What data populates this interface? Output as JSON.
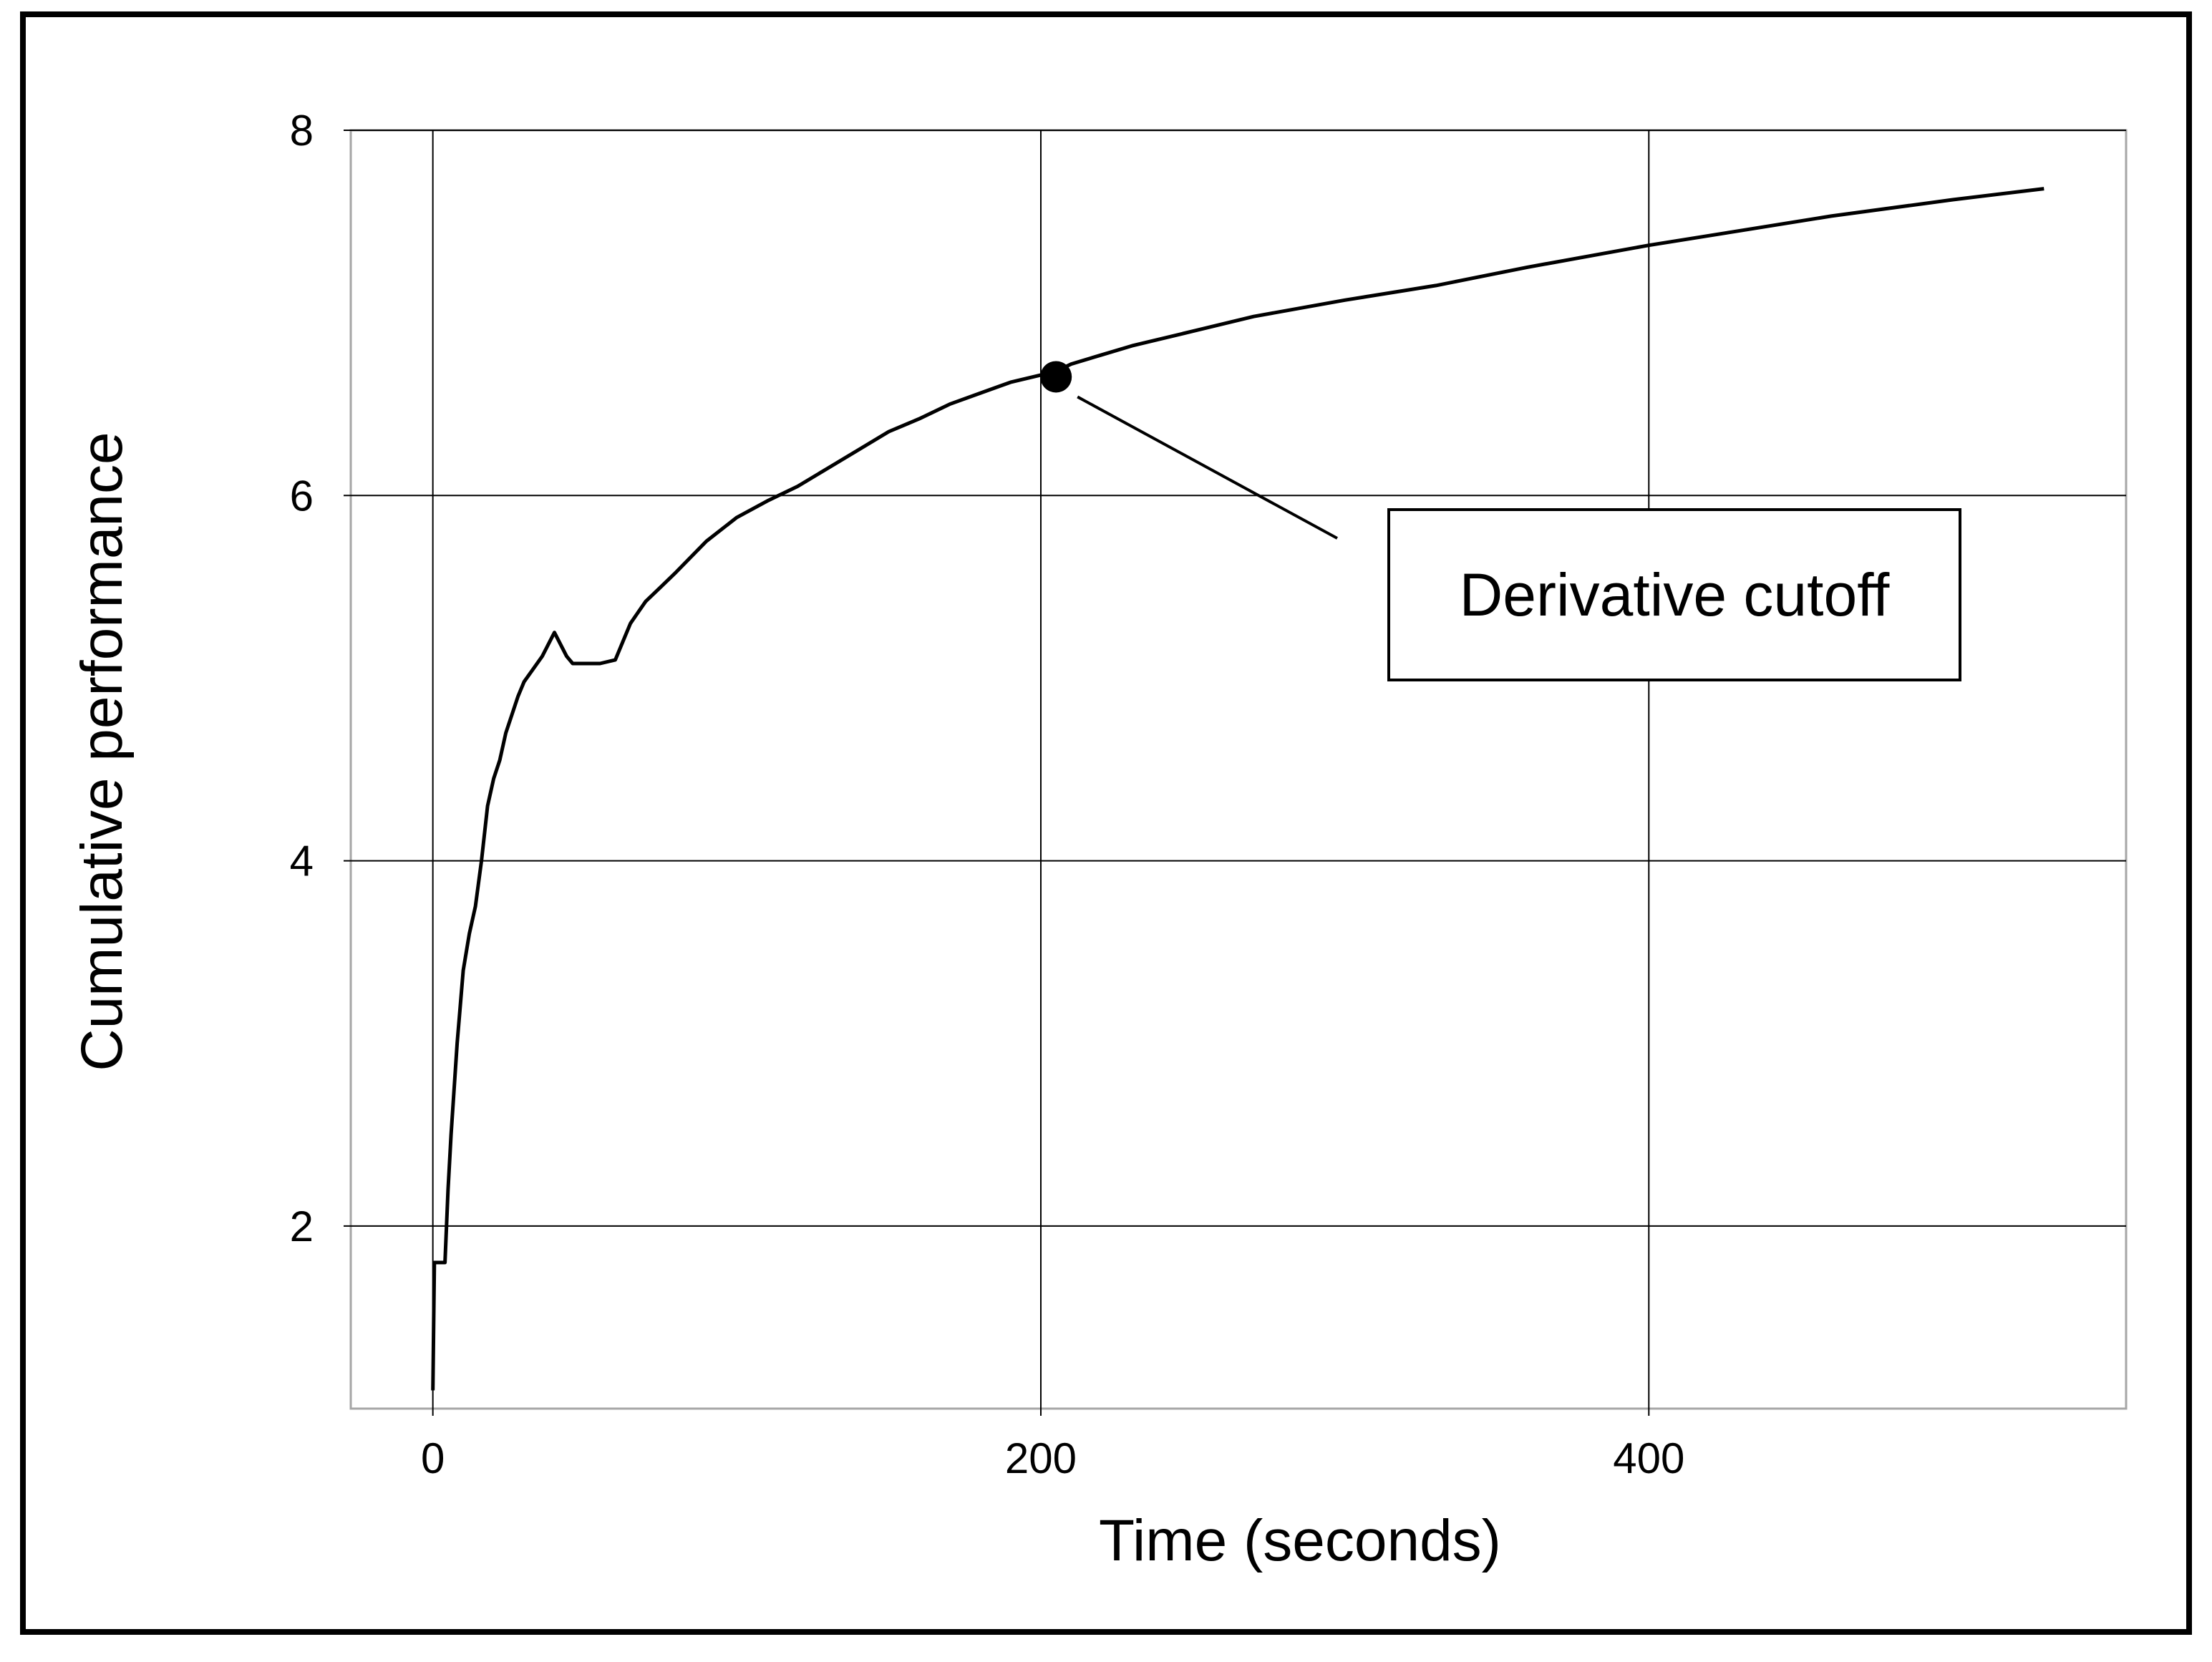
{
  "chart_data": {
    "type": "line",
    "title": "",
    "xlabel": "Time (seconds)",
    "ylabel": "Cumulative performance",
    "xlim": [
      -27,
      557
    ],
    "ylim": [
      1,
      8
    ],
    "xticks": [
      0,
      200,
      400
    ],
    "yticks": [
      2,
      4,
      6,
      8
    ],
    "grid": true,
    "series": [
      {
        "x": [
          0,
          0.5,
          1,
          4,
          5,
          6,
          8,
          10,
          12,
          14,
          16,
          18,
          20,
          22,
          24,
          26,
          28,
          30,
          33,
          36,
          40,
          44,
          46,
          48,
          50,
          55,
          60,
          65,
          70,
          75,
          80,
          90,
          100,
          110,
          120,
          130,
          140,
          150,
          160,
          170,
          180,
          190,
          200,
          205,
          210,
          220,
          230,
          250,
          270,
          300,
          330,
          360,
          400,
          430,
          460,
          500,
          530
        ],
        "y": [
          1.1,
          1.8,
          1.8,
          1.8,
          2.2,
          2.5,
          3.0,
          3.4,
          3.6,
          3.75,
          4.0,
          4.3,
          4.45,
          4.55,
          4.7,
          4.8,
          4.9,
          4.98,
          5.05,
          5.12,
          5.25,
          5.12,
          5.08,
          5.08,
          5.08,
          5.08,
          5.1,
          5.3,
          5.42,
          5.5,
          5.58,
          5.75,
          5.88,
          5.97,
          6.05,
          6.15,
          6.25,
          6.35,
          6.42,
          6.5,
          6.56,
          6.62,
          6.66,
          6.68,
          6.72,
          6.77,
          6.82,
          6.9,
          6.98,
          7.07,
          7.15,
          7.25,
          7.37,
          7.45,
          7.53,
          7.62,
          7.68
        ]
      }
    ],
    "marker": {
      "x": 205,
      "y": 6.65
    },
    "annotation": {
      "text": "Derivative cutoff"
    }
  }
}
